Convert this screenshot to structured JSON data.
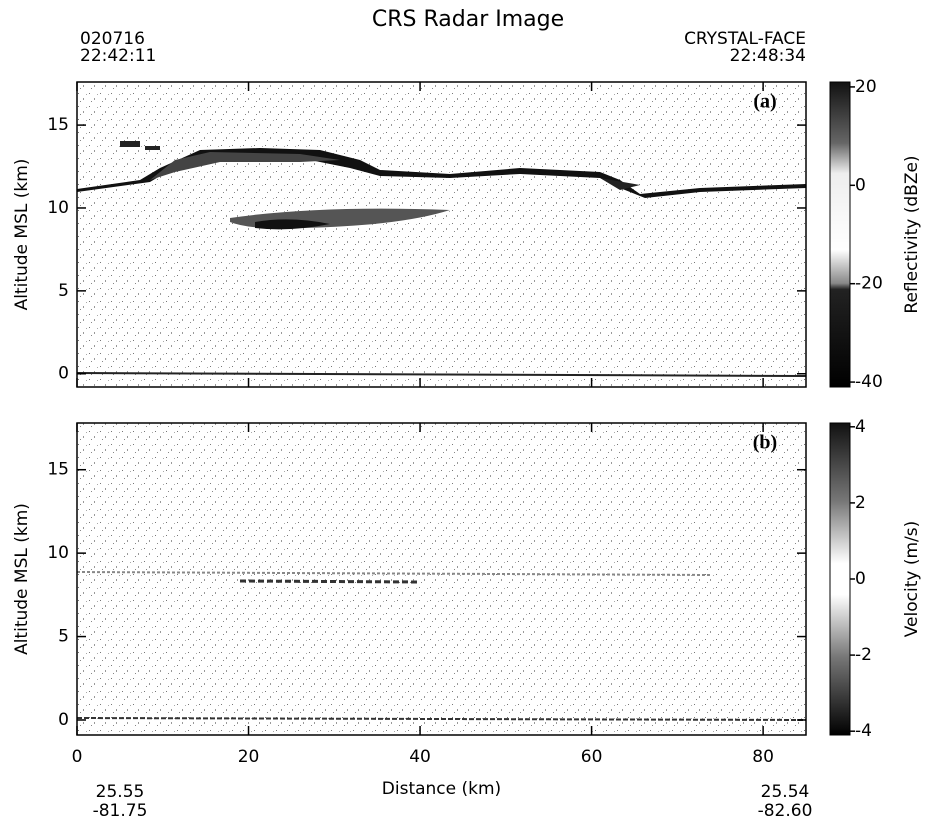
{
  "header": {
    "title": "CRS Radar Image",
    "start_date": "020716",
    "start_time": "22:42:11",
    "campaign": "CRYSTAL-FACE",
    "end_time": "22:48:34"
  },
  "footer": {
    "start_lat": "25.55",
    "start_lon": "-81.75",
    "end_lat": "25.54",
    "end_lon": "-82.60"
  },
  "chart_data": [
    {
      "type": "image",
      "panel_label": "(a)",
      "ylabel": "Altitude MSL (km)",
      "xlim": [
        0,
        85
      ],
      "xticks": [
        0,
        20,
        40,
        60,
        80
      ],
      "show_xtick_labels": false,
      "ylim": [
        -0.8,
        17.6
      ],
      "yticks": [
        0,
        5,
        10,
        15
      ],
      "colorbar": {
        "label": "Reflectivity (dBZe)",
        "lim": [
          -41,
          21
        ],
        "ticks": [
          -40,
          -20,
          0,
          20
        ]
      }
    },
    {
      "type": "image",
      "panel_label": "(b)",
      "ylabel": "Altitude MSL (km)",
      "xlabel": "Distance (km)",
      "xlim": [
        0,
        85
      ],
      "xticks": [
        0,
        20,
        40,
        60,
        80
      ],
      "show_xtick_labels": true,
      "ylim": [
        -0.9,
        17.8
      ],
      "yticks": [
        0,
        5,
        10,
        15
      ],
      "colorbar": {
        "label": "Velocity (m/s)",
        "lim": [
          -4.1,
          4.1
        ],
        "ticks": [
          -4,
          -2,
          0,
          2,
          4
        ]
      }
    }
  ]
}
